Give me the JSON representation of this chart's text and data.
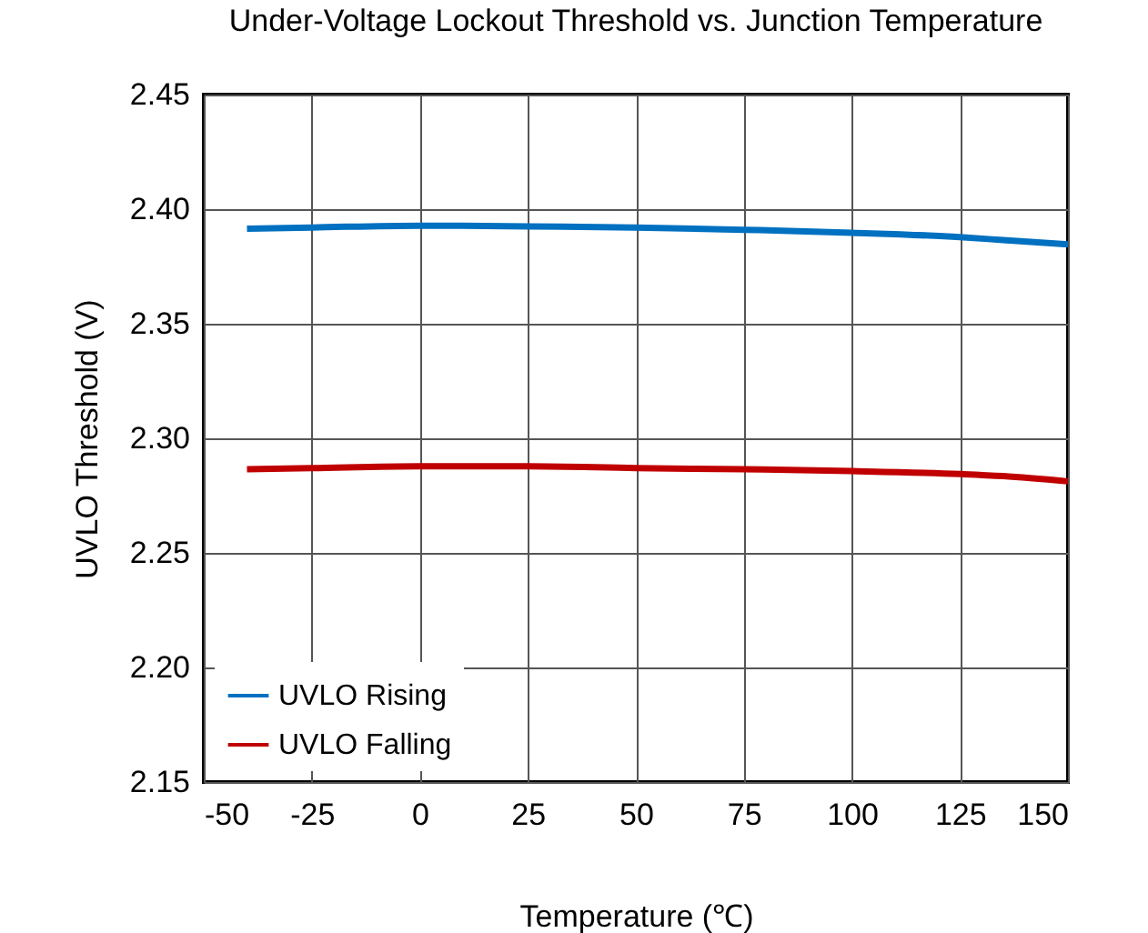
{
  "chart_data": {
    "type": "line",
    "title": "Under-Voltage Lockout Threshold vs. Junction Temperature",
    "xlabel": "Temperature (℃)",
    "ylabel": "UVLO Threshold (V)",
    "x": [
      -40,
      -25,
      0,
      25,
      50,
      75,
      100,
      125,
      135,
      150
    ],
    "series": [
      {
        "name": "UVLO Rising",
        "color": "#0070c0",
        "values": [
          2.3915,
          2.392,
          2.3928,
          2.3925,
          2.392,
          2.391,
          2.3897,
          2.3878,
          2.3865,
          2.3846
        ]
      },
      {
        "name": "UVLO Falling",
        "color": "#c00000",
        "values": [
          2.2865,
          2.287,
          2.2878,
          2.2878,
          2.287,
          2.2865,
          2.2857,
          2.2844,
          2.2835,
          2.2812
        ]
      }
    ],
    "xlim": [
      -50,
      150
    ],
    "xticks": [
      -50,
      -25,
      0,
      25,
      50,
      75,
      100,
      125,
      150
    ],
    "ylim": [
      2.15,
      2.45
    ],
    "yticks": [
      2.15,
      {
        "value": 2.2,
        "label": "2.20"
      },
      2.25,
      {
        "value": 2.3,
        "label": "2.30"
      },
      2.35,
      {
        "value": 2.4,
        "label": "2.40"
      },
      2.45
    ],
    "grid": true,
    "legend": "bottom left",
    "marker": "none",
    "line_style": "solid"
  }
}
